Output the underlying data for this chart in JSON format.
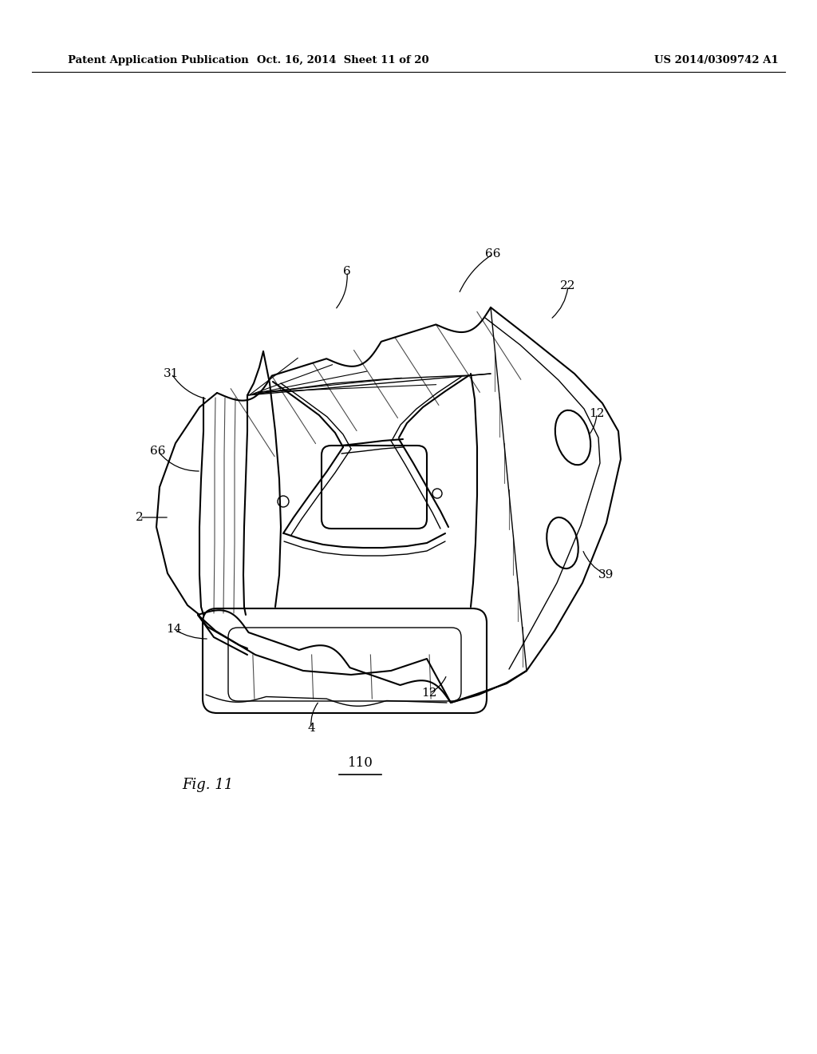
{
  "bg_color": "#ffffff",
  "header_left": "Patent Application Publication",
  "header_mid": "Oct. 16, 2014  Sheet 11 of 20",
  "header_right": "US 2014/0309742 A1",
  "fig_label": "Fig. 11",
  "ref_label": "110",
  "label_fs": 11,
  "header_fs": 9.5,
  "fig_label_fs": 13,
  "ref_label_fs": 12
}
